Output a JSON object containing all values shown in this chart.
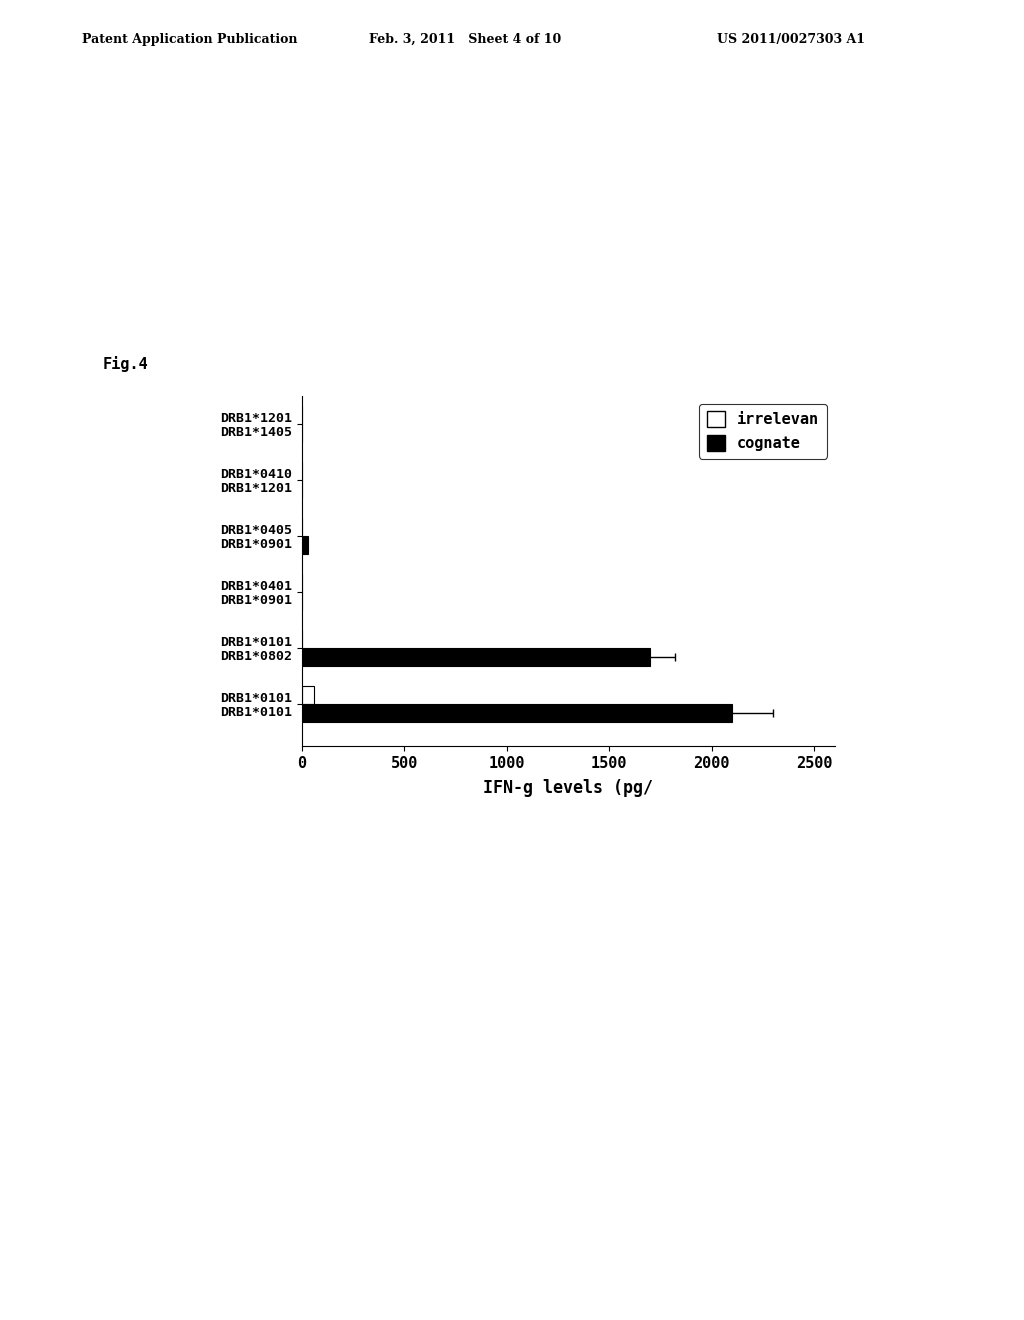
{
  "header_left": "Patent Application Publication",
  "header_mid": "Feb. 3, 2011   Sheet 4 of 10",
  "header_right": "US 2011/0027303 A1",
  "fig_label": "Fig.4",
  "ylabel_pairs": [
    [
      "DRB1*1201",
      "DRB1*1405"
    ],
    [
      "DRB1*0410",
      "DRB1*1201"
    ],
    [
      "DRB1*0405",
      "DRB1*0901"
    ],
    [
      "DRB1*0401",
      "DRB1*0901"
    ],
    [
      "DRB1*0101",
      "DRB1*0802"
    ],
    [
      "DRB1*0101",
      "DRB1*0101"
    ]
  ],
  "irrelevant_values": [
    0,
    0,
    0,
    0,
    0,
    60
  ],
  "cognate_values": [
    0,
    0,
    30,
    0,
    1700,
    2100
  ],
  "irrelevant_errors": [
    0,
    0,
    0,
    0,
    0,
    0
  ],
  "cognate_errors": [
    0,
    0,
    0,
    0,
    120,
    200
  ],
  "xlabel": "IFN-g levels (pg/",
  "xlim": [
    0,
    2600
  ],
  "xticks": [
    0,
    500,
    1000,
    1500,
    2000,
    2500
  ],
  "legend_irrelevant": "irrelevan",
  "legend_cognate": "cognate",
  "bar_color_irrelevant": "#ffffff",
  "bar_color_cognate": "#000000",
  "bar_edge_color": "#000000",
  "background_color": "#ffffff"
}
